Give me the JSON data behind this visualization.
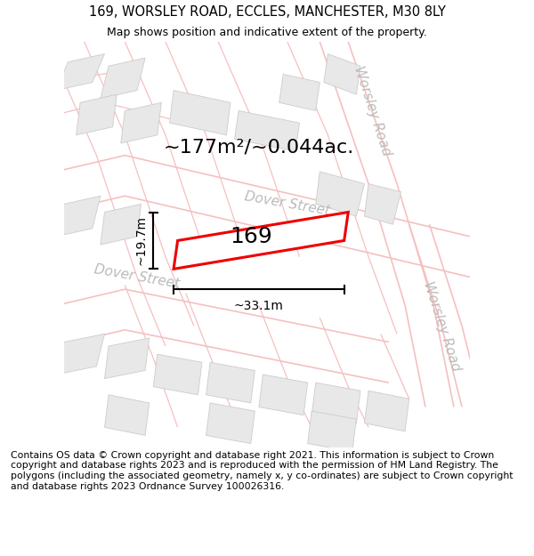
{
  "title": "169, WORSLEY ROAD, ECCLES, MANCHESTER, M30 8LY",
  "subtitle": "Map shows position and indicative extent of the property.",
  "footer": "Contains OS data © Crown copyright and database right 2021. This information is subject to Crown copyright and database rights 2023 and is reproduced with the permission of HM Land Registry. The polygons (including the associated geometry, namely x, y co-ordinates) are subject to Crown copyright and database rights 2023 Ordnance Survey 100026316.",
  "area_label": "~177m²/~0.044ac.",
  "width_label": "~33.1m",
  "height_label": "~19.7m",
  "plot_number": "169",
  "bg_color": "#ffffff",
  "road_color": "#f5c0c0",
  "building_fc": "#e8e8e8",
  "building_ec": "#cccccc",
  "plot_fc": "#ffffff",
  "plot_ec": "#ee0000",
  "street_label_color": "#bbbbbb",
  "title_fontsize": 10.5,
  "subtitle_fontsize": 9,
  "footer_fontsize": 7.8,
  "area_fontsize": 16,
  "plot_num_fontsize": 18,
  "dim_fontsize": 10,
  "street_fontsize": 11
}
